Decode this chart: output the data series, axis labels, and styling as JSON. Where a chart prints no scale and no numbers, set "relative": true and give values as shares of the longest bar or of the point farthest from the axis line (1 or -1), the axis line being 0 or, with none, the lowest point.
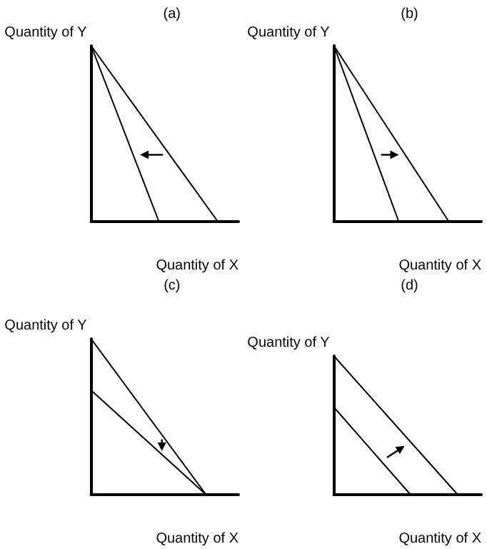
{
  "chart_data": [
    {
      "type": "line",
      "title": "(a)",
      "xlabel": "Quantity of X",
      "ylabel": "Quantity of Y",
      "relative": true,
      "marker": "none",
      "categories": [
        null,
        null,
        null,
        null,
        null,
        null,
        null,
        null,
        null,
        null,
        null,
        null,
        null,
        null,
        null,
        null,
        null,
        null,
        null,
        null,
        null,
        null,
        null,
        null,
        null,
        null,
        null,
        null,
        null,
        null,
        null,
        null,
        null,
        null,
        null,
        null,
        null,
        null,
        null,
        null,
        null,
        null,
        null,
        null,
        null,
        null,
        null,
        null,
        null,
        null,
        null
      ],
      "series": [
        {
          "color": "#000000",
          "values": [
            1,
            null,
            null,
            null,
            null,
            null,
            null,
            null,
            null,
            null,
            null,
            null,
            null,
            null,
            null,
            null,
            null,
            null,
            null,
            null,
            null,
            null,
            null,
            null,
            null,
            null,
            null,
            null,
            null,
            null,
            null,
            null,
            null,
            null,
            null,
            null,
            null,
            null,
            null,
            null,
            null,
            null,
            null,
            0,
            null,
            null,
            null,
            null,
            null,
            null,
            null
          ]
        },
        {
          "color": "#000000",
          "values": [
            1,
            null,
            null,
            null,
            null,
            null,
            null,
            null,
            null,
            null,
            null,
            null,
            null,
            null,
            null,
            null,
            null,
            null,
            null,
            null,
            null,
            null,
            null,
            0,
            null,
            null,
            null,
            null,
            null,
            null,
            null,
            null,
            null,
            null,
            null,
            null,
            null,
            null,
            null,
            null,
            null,
            null,
            null,
            null,
            null,
            null,
            null,
            null,
            null,
            null,
            null
          ]
        }
      ]
    },
    {
      "type": "line",
      "title": "(b)",
      "xlabel": "Quantity of X",
      "ylabel": "Quantity of Y",
      "relative": true,
      "marker": "none",
      "categories": [
        null,
        null,
        null,
        null,
        null,
        null,
        null,
        null,
        null,
        null,
        null,
        null,
        null,
        null,
        null,
        null,
        null,
        null,
        null,
        null,
        null,
        null,
        null,
        null,
        null,
        null,
        null,
        null,
        null,
        null,
        null,
        null,
        null,
        null,
        null,
        null,
        null,
        null,
        null,
        null,
        null,
        null,
        null,
        null,
        null,
        null,
        null,
        null,
        null,
        null,
        null
      ],
      "series": [
        {
          "color": "#000000",
          "values": [
            1,
            null,
            null,
            null,
            null,
            null,
            null,
            null,
            null,
            null,
            null,
            null,
            null,
            null,
            null,
            null,
            null,
            null,
            null,
            null,
            null,
            null,
            0,
            null,
            null,
            null,
            null,
            null,
            null,
            null,
            null,
            null,
            null,
            null,
            null,
            null,
            null,
            null,
            null,
            null,
            null,
            null,
            null,
            null,
            null,
            null,
            null,
            null,
            null,
            null,
            null
          ]
        },
        {
          "color": "#000000",
          "values": [
            1,
            null,
            null,
            null,
            null,
            null,
            null,
            null,
            null,
            null,
            null,
            null,
            null,
            null,
            null,
            null,
            null,
            null,
            null,
            null,
            null,
            null,
            null,
            null,
            null,
            null,
            null,
            null,
            null,
            null,
            null,
            null,
            null,
            null,
            null,
            null,
            null,
            null,
            null,
            0,
            null,
            null,
            null,
            null,
            null,
            null,
            null,
            null,
            null,
            null,
            null
          ]
        }
      ]
    },
    {
      "type": "line",
      "title": "(c)",
      "xlabel": "Quantity of X",
      "ylabel": "Quantity of Y",
      "relative": true,
      "marker": "none",
      "categories": [
        null,
        null,
        null,
        null,
        null,
        null,
        null,
        null,
        null,
        null,
        null,
        null,
        null,
        null,
        null,
        null,
        null,
        null,
        null,
        null,
        null,
        null,
        null,
        null,
        null,
        null,
        null,
        null,
        null,
        null,
        null,
        null,
        null,
        null,
        null,
        null,
        null,
        null,
        null,
        null,
        null,
        null,
        null,
        null,
        null,
        null,
        null,
        null,
        null,
        null,
        null
      ],
      "series": [
        {
          "color": "#000000",
          "values": [
            1,
            null,
            null,
            null,
            null,
            null,
            null,
            null,
            null,
            null,
            null,
            null,
            null,
            null,
            null,
            null,
            null,
            null,
            null,
            null,
            null,
            null,
            null,
            null,
            null,
            null,
            null,
            null,
            null,
            null,
            null,
            null,
            null,
            null,
            null,
            null,
            null,
            null,
            null,
            0,
            null,
            null,
            null,
            null,
            null,
            null,
            null,
            null,
            null,
            null,
            null
          ]
        },
        {
          "color": "#000000",
          "values": [
            0.67,
            null,
            null,
            null,
            null,
            null,
            null,
            null,
            null,
            null,
            null,
            null,
            null,
            null,
            null,
            null,
            null,
            null,
            null,
            null,
            null,
            null,
            null,
            null,
            null,
            null,
            null,
            null,
            null,
            null,
            null,
            null,
            null,
            null,
            null,
            null,
            null,
            null,
            null,
            0,
            null,
            null,
            null,
            null,
            null,
            null,
            null,
            null,
            null,
            null,
            null
          ]
        }
      ]
    },
    {
      "type": "line",
      "title": "(d)",
      "xlabel": "Quantity of X",
      "ylabel": "Quantity of Y",
      "relative": true,
      "marker": "none",
      "categories": [
        null,
        null,
        null,
        null,
        null,
        null,
        null,
        null,
        null,
        null,
        null,
        null,
        null,
        null,
        null,
        null,
        null,
        null,
        null,
        null,
        null,
        null,
        null,
        null,
        null,
        null,
        null,
        null,
        null,
        null,
        null,
        null,
        null,
        null,
        null,
        null,
        null,
        null,
        null,
        null,
        null,
        null,
        null,
        null,
        null,
        null,
        null,
        null,
        null,
        null,
        null
      ],
      "series": [
        {
          "color": "#000000",
          "values": [
            0.63,
            null,
            null,
            null,
            null,
            null,
            null,
            null,
            null,
            null,
            null,
            null,
            null,
            null,
            null,
            null,
            null,
            null,
            null,
            null,
            null,
            null,
            null,
            null,
            null,
            null,
            0,
            null,
            null,
            null,
            null,
            null,
            null,
            null,
            null,
            null,
            null,
            null,
            null,
            null,
            null,
            null,
            null,
            null,
            null,
            null,
            null,
            null,
            null,
            null,
            null
          ]
        },
        {
          "color": "#000000",
          "values": [
            1,
            null,
            null,
            null,
            null,
            null,
            null,
            null,
            null,
            null,
            null,
            null,
            null,
            null,
            null,
            null,
            null,
            null,
            null,
            null,
            null,
            null,
            null,
            null,
            null,
            null,
            null,
            null,
            null,
            null,
            null,
            null,
            null,
            null,
            null,
            null,
            null,
            null,
            null,
            null,
            null,
            null,
            0,
            null,
            null,
            null,
            null,
            null,
            null,
            null,
            null
          ]
        }
      ]
    }
  ]
}
